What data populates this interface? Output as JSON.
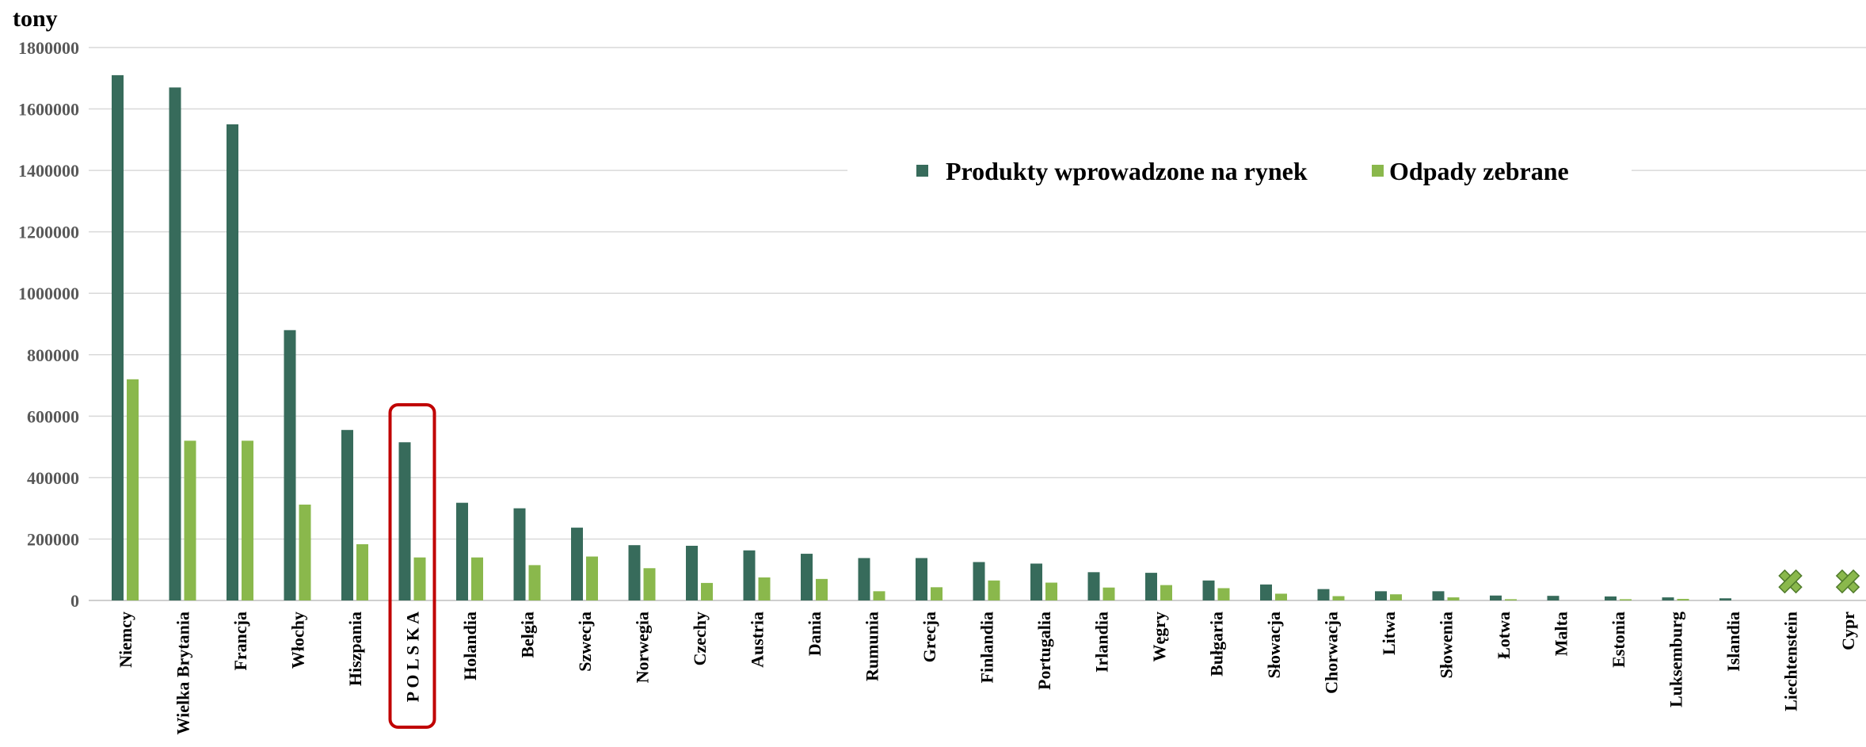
{
  "chart_data": {
    "type": "bar",
    "y_unit_label": "tony",
    "ylim": [
      0,
      1800000
    ],
    "yticks": [
      0,
      200000,
      400000,
      600000,
      800000,
      1000000,
      1200000,
      1400000,
      1600000,
      1800000
    ],
    "grid": true,
    "legend_position": "top-right",
    "categories": [
      "Niemcy",
      "Wielka Brytania",
      "Francja",
      "Włochy",
      "Hiszpania",
      "P O L S K A",
      "Holandia",
      "Belgia",
      "Szwecja",
      "Norwegia",
      "Czechy",
      "Austria",
      "Dania",
      "Rumunia",
      "Grecja",
      "Finlandia",
      "Portugalia",
      "Irlandia",
      "Węgry",
      "Bułgaria",
      "Słowacja",
      "Chorwacja",
      "Litwa",
      "Słowenia",
      "Łotwa",
      "Malta",
      "Estonia",
      "Luksemburg",
      "Islandia",
      "Liechtenstein",
      "Cypr"
    ],
    "highlighted_category": "P O L S K A",
    "missing_data_marker": "x-mark",
    "missing_data_categories": [
      "Liechtenstein",
      "Cypr"
    ],
    "series": [
      {
        "name": "Produkty wprowadzone na rynek",
        "color": "#376b5b",
        "values": [
          1710000,
          1670000,
          1550000,
          880000,
          555000,
          515000,
          318000,
          300000,
          237000,
          180000,
          178000,
          163000,
          152000,
          138000,
          138000,
          125000,
          120000,
          92000,
          90000,
          65000,
          52000,
          37000,
          30000,
          30000,
          16000,
          15000,
          13000,
          10000,
          7000,
          null,
          null
        ]
      },
      {
        "name": "Odpady zebrane",
        "color": "#8ab84c",
        "values": [
          720000,
          520000,
          520000,
          312000,
          183000,
          140000,
          140000,
          115000,
          143000,
          105000,
          57000,
          75000,
          70000,
          30000,
          43000,
          65000,
          58000,
          42000,
          50000,
          40000,
          22000,
          14000,
          20000,
          10000,
          4000,
          0,
          4000,
          5000,
          0,
          null,
          null
        ]
      }
    ]
  }
}
